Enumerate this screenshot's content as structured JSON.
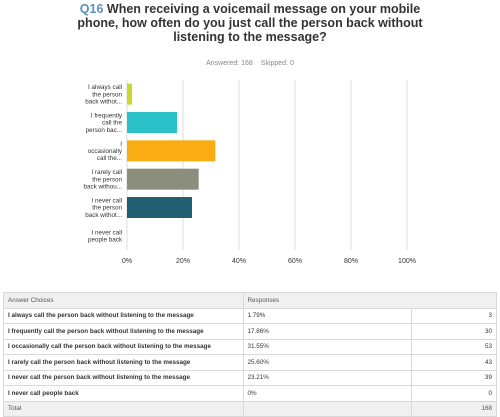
{
  "question": {
    "number": "Q16",
    "text": "When receiving a voicemail message on your mobile phone, how often do you just call the person back without listening to the message?"
  },
  "stats": {
    "answered": "Answered: 168",
    "skipped": "Skipped: 0"
  },
  "colors": {
    "always": "#c9d92b",
    "frequently": "#2bc1c8",
    "occasionally": "#f9ad12",
    "rarely": "#8b8d7d",
    "never": "#215f71",
    "never_people": "#2bc1c8",
    "grid": "#dcdcdc"
  },
  "chart_data": {
    "type": "bar",
    "orientation": "horizontal",
    "categories": [
      [
        "I always call",
        "the person",
        "back withot..."
      ],
      [
        "I frequently",
        "call the",
        "person bac..."
      ],
      [
        "I",
        "occasionally",
        "call the..."
      ],
      [
        "I rarely call",
        "the person",
        "back withou..."
      ],
      [
        "I never call",
        "the person",
        "back withot..."
      ],
      [
        "I never call",
        "people back"
      ]
    ],
    "values": [
      1.79,
      17.86,
      31.55,
      25.6,
      23.21,
      0
    ],
    "x_ticks": [
      "0%",
      "20%",
      "40%",
      "60%",
      "80%",
      "100%"
    ],
    "xlim": [
      0,
      100
    ],
    "grid": true
  },
  "table": {
    "headers": [
      "Answer Choices",
      "Responses"
    ],
    "rows": [
      {
        "choice": "I always call the person back without listening to the message",
        "pct": "1.79%",
        "count": "3"
      },
      {
        "choice": "I frequently call the person back without listening to the message",
        "pct": "17.86%",
        "count": "30"
      },
      {
        "choice": "I occasionally call the person back without listening to the message",
        "pct": "31.55%",
        "count": "53"
      },
      {
        "choice": "I rarely call the person back without listening to the message",
        "pct": "25.60%",
        "count": "43"
      },
      {
        "choice": "I never call the person back without listening to the message",
        "pct": "23.21%",
        "count": "39"
      },
      {
        "choice": "I never call people back",
        "pct": "0%",
        "count": "0"
      }
    ],
    "total_label": "Total",
    "total_value": "168"
  }
}
